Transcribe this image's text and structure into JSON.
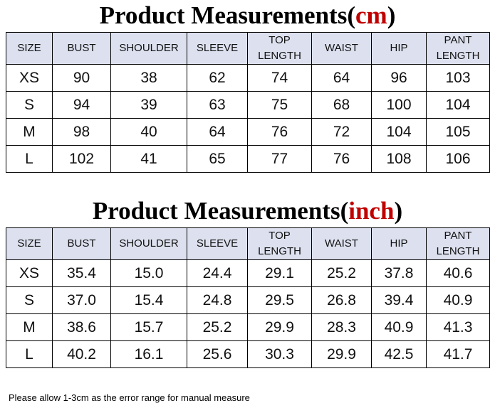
{
  "sections": [
    {
      "title": {
        "before": "Product Measurements(",
        "unit": "cm",
        "after": ")"
      },
      "table": {
        "header": [
          "SIZE",
          "BUST",
          "SHOULDER",
          "SLEEVE",
          "TOP LENGTH",
          "WAIST",
          "HIP",
          "PANT LENGTH"
        ],
        "rows": [
          [
            "XS",
            "90",
            "38",
            "62",
            "74",
            "64",
            "96",
            "103"
          ],
          [
            "S",
            "94",
            "39",
            "63",
            "75",
            "68",
            "100",
            "104"
          ],
          [
            "M",
            "98",
            "40",
            "64",
            "76",
            "72",
            "104",
            "105"
          ],
          [
            "L",
            "102",
            "41",
            "65",
            "77",
            "76",
            "108",
            "106"
          ]
        ]
      }
    },
    {
      "title": {
        "before": "Product Measurements(",
        "unit": "inch",
        "after": ")"
      },
      "table": {
        "header": [
          "SIZE",
          "BUST",
          "SHOULDER",
          "SLEEVE",
          "TOP LENGTH",
          "WAIST",
          "HIP",
          "PANT LENGTH"
        ],
        "rows": [
          [
            "XS",
            "35.4",
            "15.0",
            "24.4",
            "29.1",
            "25.2",
            "37.8",
            "40.6"
          ],
          [
            "S",
            "37.0",
            "15.4",
            "24.8",
            "29.5",
            "26.8",
            "39.4",
            "40.9"
          ],
          [
            "M",
            "38.6",
            "15.7",
            "25.2",
            "29.9",
            "28.3",
            "40.9",
            "41.3"
          ],
          [
            "L",
            "40.2",
            "16.1",
            "25.6",
            "30.3",
            "29.9",
            "42.5",
            "41.7"
          ]
        ]
      }
    }
  ],
  "footer": "Please allow 1-3cm as the error range for manual measure"
}
